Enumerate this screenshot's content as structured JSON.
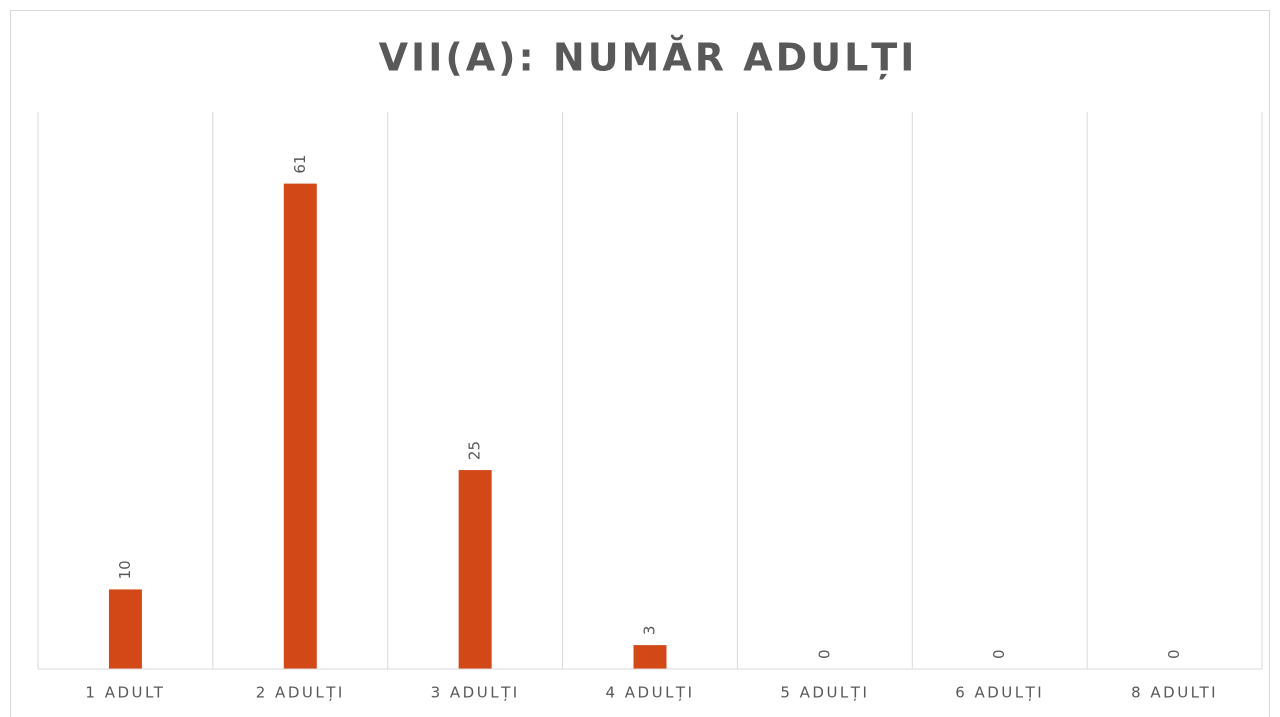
{
  "chart_data": {
    "type": "bar",
    "title": "VII(A): NUMĂR ADULȚI",
    "categories": [
      "1 ADULT",
      "2 ADULȚI",
      "3 ADULȚI",
      "4 ADULȚI",
      "5 ADULȚI",
      "6 ADULȚI",
      "8 ADULTI"
    ],
    "values": [
      10,
      61,
      25,
      3,
      0,
      0,
      0
    ],
    "color": "#d34817",
    "ylim": [
      0,
      70
    ],
    "grid": true
  }
}
